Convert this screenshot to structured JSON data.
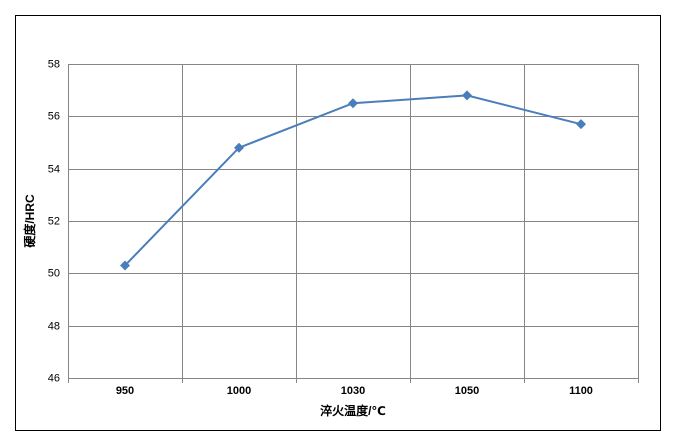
{
  "chart_data": {
    "type": "line",
    "categories": [
      "950",
      "1000",
      "1030",
      "1050",
      "1100"
    ],
    "values": [
      50.3,
      54.8,
      56.5,
      56.8,
      55.7
    ],
    "color": "#4a7ebb",
    "ylim": [
      46,
      58
    ],
    "yticks": [
      46,
      48,
      50,
      52,
      54,
      56,
      58
    ],
    "grid": true,
    "x_label": "淬火温度/℃",
    "y_label": "硬度/HRC"
  }
}
